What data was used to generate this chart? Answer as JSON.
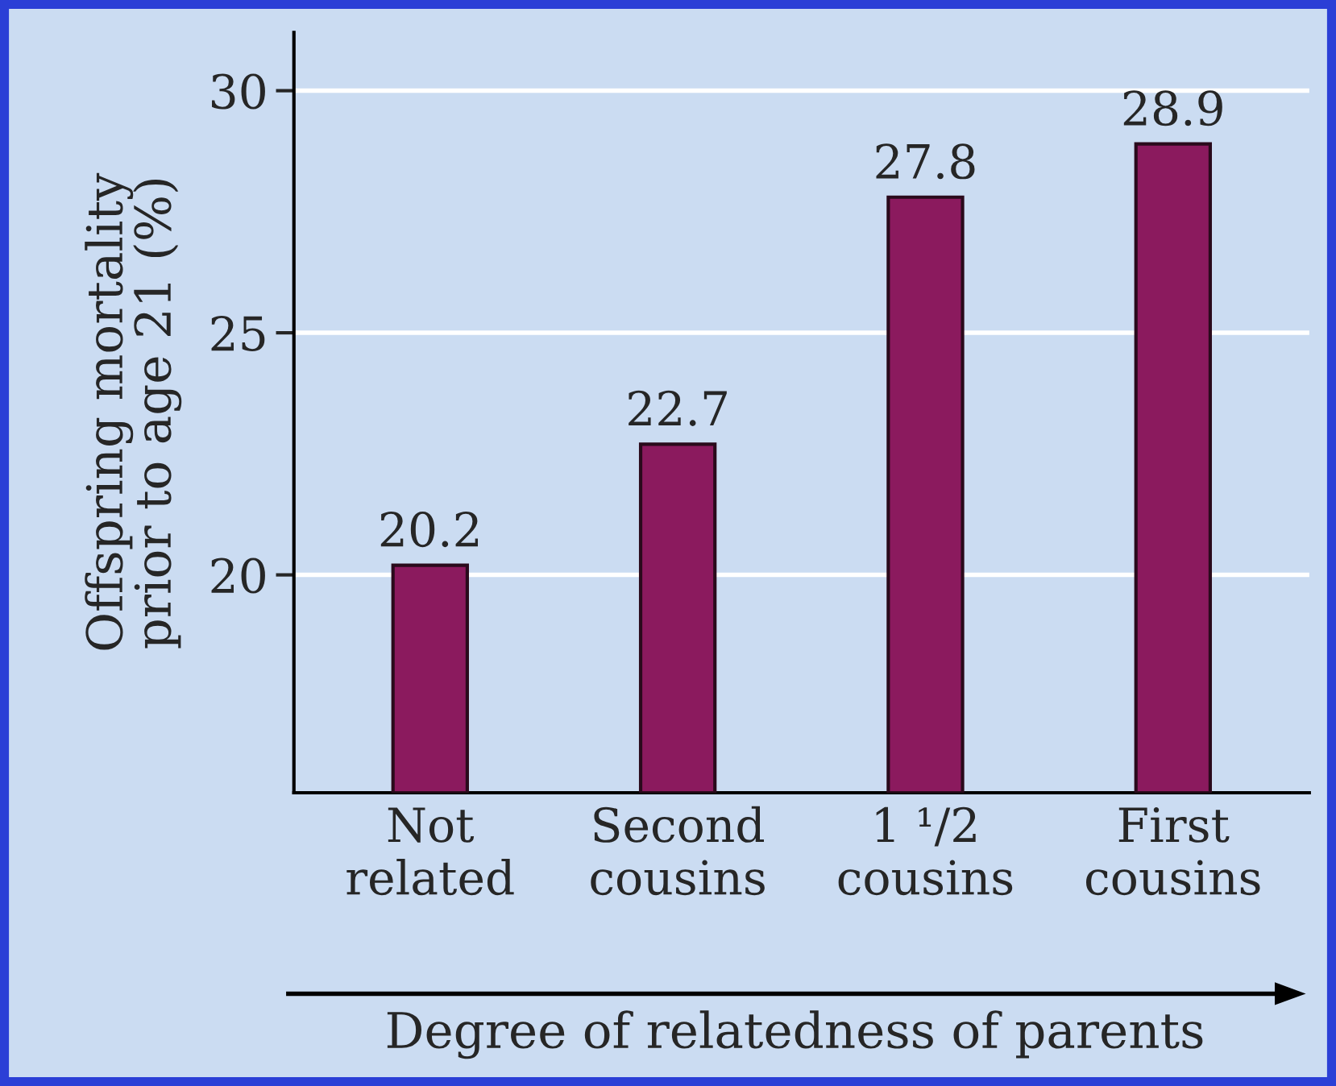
{
  "chart_data": {
    "type": "bar",
    "categories": [
      "Not\nrelated",
      "Second\ncousins",
      "1 ¹/2\ncousins",
      "First\ncousins"
    ],
    "values": [
      20.2,
      22.7,
      27.8,
      28.9
    ],
    "color": "#8b1a5e",
    "ylabel": "Offspring mortality\nprior to age 21 (%)",
    "xlabel": "Degree of relatedness of parents",
    "ylim": [
      15.5,
      31.2
    ],
    "yticks": [
      20,
      25,
      30
    ],
    "grid": "y",
    "data_labels": true
  }
}
